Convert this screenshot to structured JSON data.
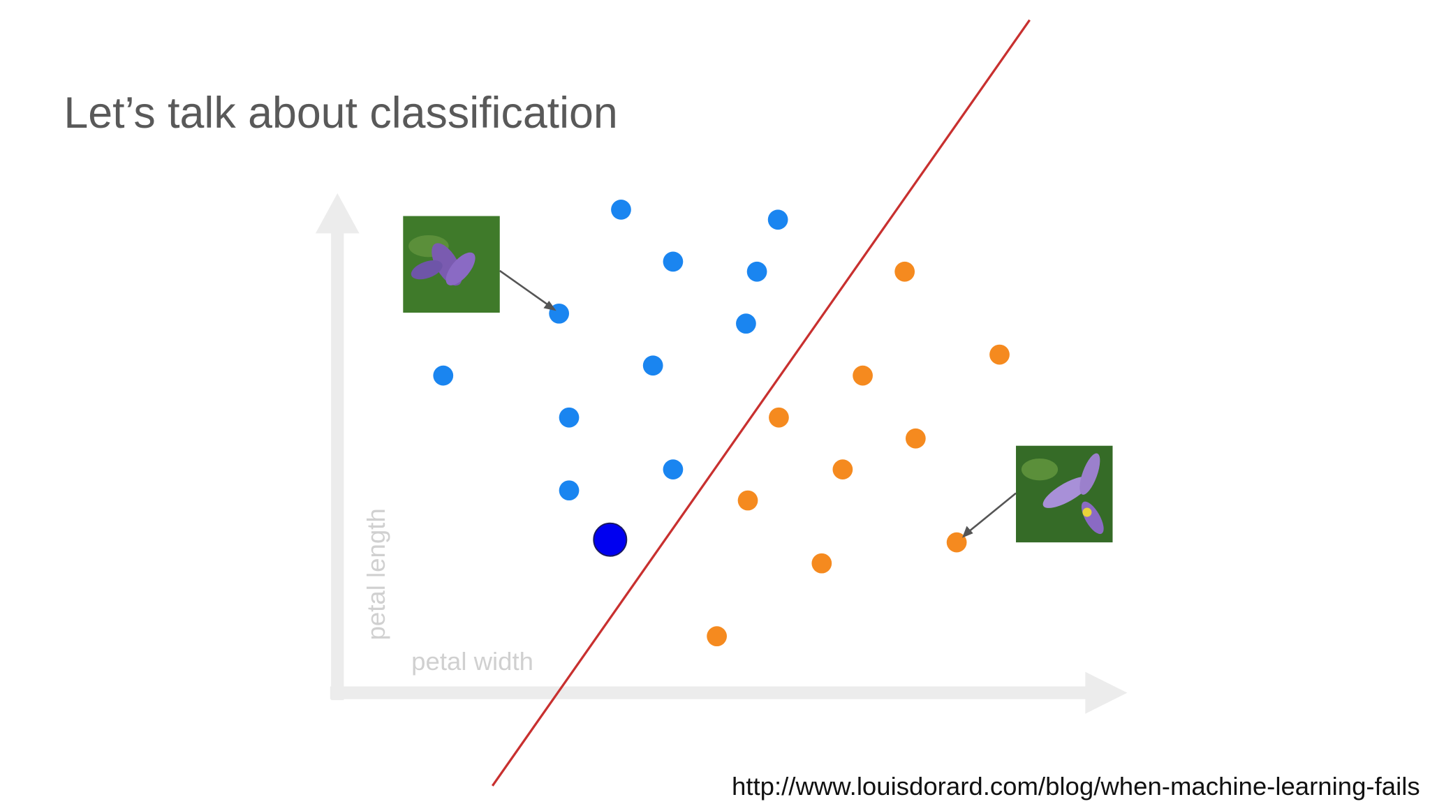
{
  "title": "Let’s talk about classification",
  "diagram": {
    "y_axis_label": "petal length",
    "x_axis_label": "petal width"
  },
  "source": "http://www.louisdorard.com/blog/when-machine-learning-fails"
}
